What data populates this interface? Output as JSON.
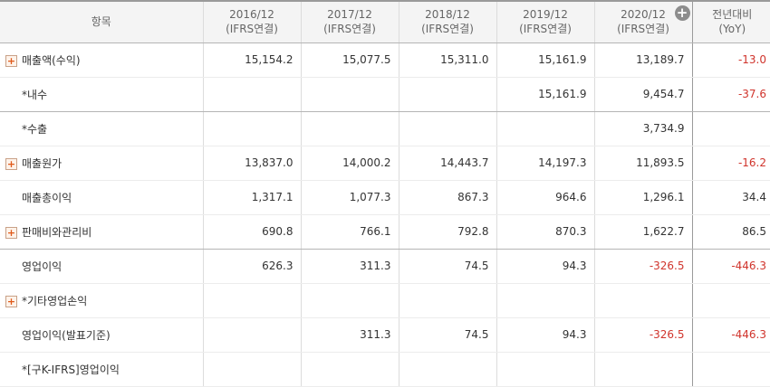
{
  "header": {
    "item": "항목",
    "years": [
      {
        "year": "2016/12",
        "basis": "(IFRS연결)"
      },
      {
        "year": "2017/12",
        "basis": "(IFRS연결)"
      },
      {
        "year": "2018/12",
        "basis": "(IFRS연결)"
      },
      {
        "year": "2019/12",
        "basis": "(IFRS연결)"
      },
      {
        "year": "2020/12",
        "basis": "(IFRS연결)"
      }
    ],
    "yoy_title": "전년대비",
    "yoy_sub": "(YoY)",
    "expand_icon": "+"
  },
  "rows": [
    {
      "label": "매출액(수익)",
      "expandable": true,
      "values": [
        "15,154.2",
        "15,077.5",
        "15,311.0",
        "15,161.9",
        "13,189.7"
      ],
      "yoy": "-13.0"
    },
    {
      "label": "*내수",
      "expandable": false,
      "values": [
        "",
        "",
        "",
        "15,161.9",
        "9,454.7"
      ],
      "yoy": "-37.6"
    },
    {
      "label": "*수출",
      "expandable": false,
      "values": [
        "",
        "",
        "",
        "",
        "3,734.9"
      ],
      "yoy": ""
    },
    {
      "label": "매출원가",
      "expandable": true,
      "values": [
        "13,837.0",
        "14,000.2",
        "14,443.7",
        "14,197.3",
        "11,893.5"
      ],
      "yoy": "-16.2"
    },
    {
      "label": "매출총이익",
      "expandable": false,
      "values": [
        "1,317.1",
        "1,077.3",
        "867.3",
        "964.6",
        "1,296.1"
      ],
      "yoy": "34.4"
    },
    {
      "label": "판매비와관리비",
      "expandable": true,
      "values": [
        "690.8",
        "766.1",
        "792.8",
        "870.3",
        "1,622.7"
      ],
      "yoy": "86.5"
    },
    {
      "label": "영업이익",
      "expandable": false,
      "values": [
        "626.3",
        "311.3",
        "74.5",
        "94.3",
        "-326.5"
      ],
      "yoy": "-446.3"
    },
    {
      "label": "*기타영업손익",
      "expandable": true,
      "values": [
        "",
        "",
        "",
        "",
        ""
      ],
      "yoy": ""
    },
    {
      "label": "영업이익(발표기준)",
      "expandable": false,
      "values": [
        "",
        "311.3",
        "74.5",
        "94.3",
        "-326.5"
      ],
      "yoy": "-446.3"
    },
    {
      "label": "*[구K-IFRS]영업이익",
      "expandable": false,
      "values": [
        "",
        "",
        "",
        "",
        ""
      ],
      "yoy": ""
    }
  ],
  "colors": {
    "negative": "#d0342c",
    "header_bg": "#f4f4f4",
    "expand_icon": "#e05a1a"
  }
}
